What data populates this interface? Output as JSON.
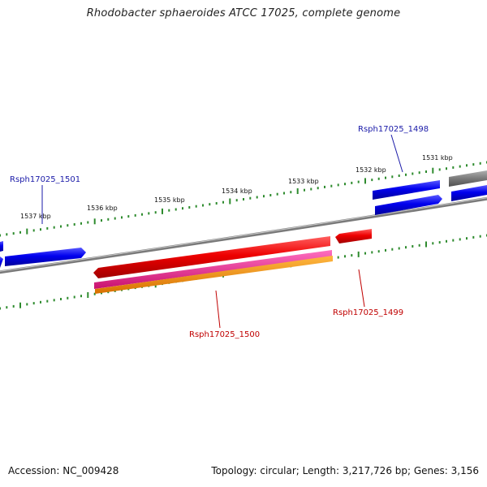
{
  "title": "Rhodobacter sphaeroides ATCC 17025, complete genome",
  "footer": {
    "accession": "Accession: NC_009428",
    "summary": "Topology: circular; Length: 3,217,726 bp; Genes: 3,156"
  },
  "ticks": [
    {
      "label": "1531 kbp"
    },
    {
      "label": "1532 kbp"
    },
    {
      "label": "1533 kbp"
    },
    {
      "label": "1534 kbp"
    },
    {
      "label": "1535 kbp"
    },
    {
      "label": "1536 kbp"
    },
    {
      "label": "1537 kbp"
    }
  ],
  "genes": [
    {
      "name": "Rsph17025_1498",
      "color": "#1a1aa8"
    },
    {
      "name": "Rsph17025_1499",
      "color": "#c00000"
    },
    {
      "name": "Rsph17025_1500",
      "color": "#c00000"
    },
    {
      "name": "Rsph17025_1501",
      "color": "#1a1aa8"
    }
  ],
  "colors": {
    "forward_gene": "#0000ee",
    "reverse_gene": "#ee0000",
    "pink_feature": "#e0208a",
    "orange_feature": "#f08c00",
    "backbone": "#8a8a8a",
    "tick_marks": "#2e8b2e"
  }
}
